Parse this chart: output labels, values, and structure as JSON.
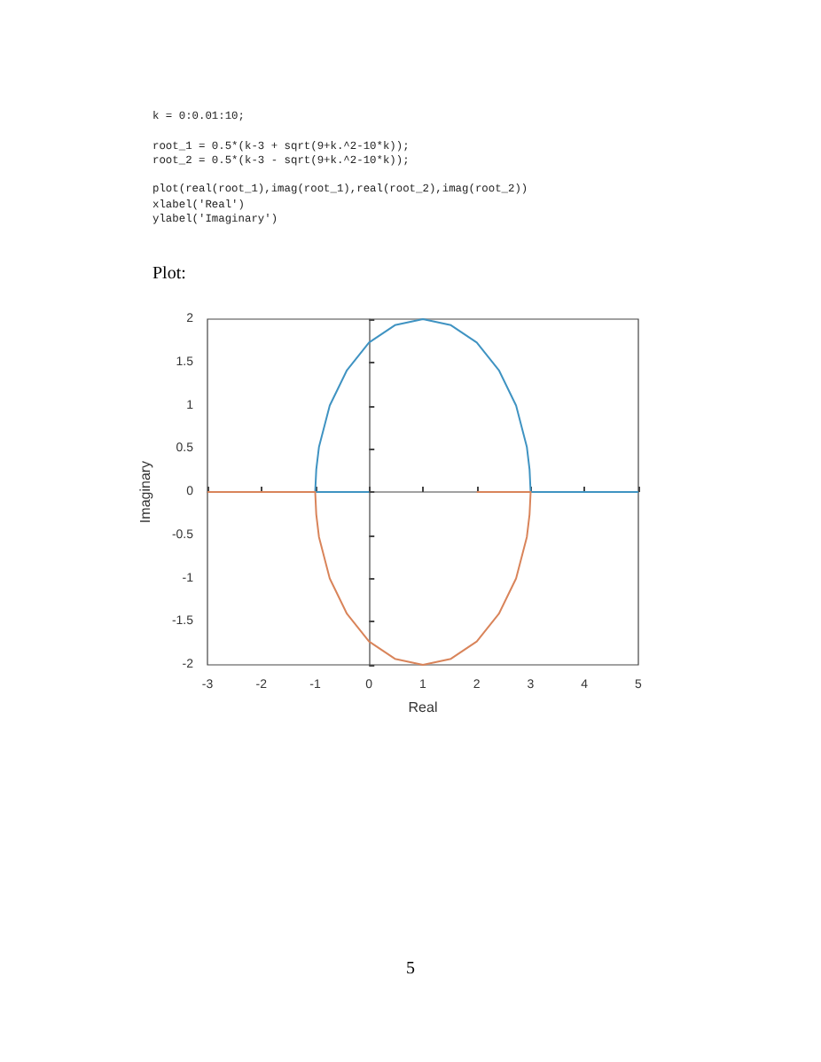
{
  "chart_data": {
    "type": "line",
    "xlabel": "Real",
    "ylabel": "Imaginary",
    "xlim": [
      -3,
      5
    ],
    "ylim": [
      -2,
      2
    ],
    "xticks": [
      -3,
      -2,
      -1,
      0,
      1,
      2,
      3,
      4,
      5
    ],
    "yticks": [
      -2,
      -1.5,
      -1,
      -0.5,
      0,
      0.5,
      1,
      1.5,
      2
    ],
    "series": [
      {
        "color": "#3f93c2",
        "x": [
          0,
          -1,
          -1,
          -0.98,
          -0.93,
          -0.73,
          -0.41,
          0,
          0.48,
          1,
          1.52,
          2,
          2.41,
          2.73,
          2.93,
          2.98,
          3,
          3,
          5
        ],
        "values": [
          0,
          0,
          0,
          0.26,
          0.52,
          1,
          1.41,
          1.73,
          1.93,
          2,
          1.93,
          1.73,
          1.41,
          1,
          0.52,
          0.26,
          0,
          0,
          0
        ]
      },
      {
        "color": "#d9845a",
        "x": [
          -3,
          -1,
          -1,
          -0.98,
          -0.93,
          -0.73,
          -0.41,
          0,
          0.48,
          1,
          1.52,
          2,
          2.41,
          2.73,
          2.93,
          2.98,
          3,
          3,
          2
        ],
        "values": [
          0,
          0,
          0,
          -0.26,
          -0.52,
          -1,
          -1.41,
          -1.73,
          -1.93,
          -2,
          -1.93,
          -1.73,
          -1.41,
          -1,
          -0.52,
          -0.26,
          0,
          0,
          0
        ]
      }
    ],
    "annotations": [
      "k = 0:0.01:10;\n\nroot_1 = 0.5*(k-3 + sqrt(9+k.^2-10*k));\nroot_2 = 0.5*(k-3 - sqrt(9+k.^2-10*k));\n\nplot(real(root_1),imag(root_1),real(root_2),imag(root_2))\nxlabel('Real')\nylabel('Imaginary')",
      "Plot:",
      "5"
    ]
  }
}
